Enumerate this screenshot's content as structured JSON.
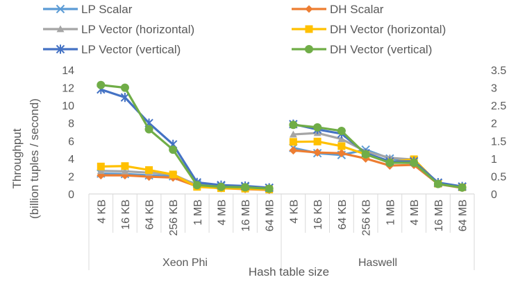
{
  "chart_data": {
    "type": "line",
    "xlabel": "Hash table size",
    "ylabel_lines": [
      "Throughput",
      "(billion tuples / second)"
    ],
    "groups": [
      {
        "label": "Xeon Phi",
        "categories": [
          "4 KB",
          "16 KB",
          "64 KB",
          "256 KB",
          "1 MB",
          "4 MB",
          "16 MB",
          "64 MB"
        ],
        "axis": "left"
      },
      {
        "label": "Haswell",
        "categories": [
          "4 KB",
          "16 KB",
          "64 KB",
          "256 KB",
          "1 MB",
          "4 MB",
          "16 MB",
          "64 MB"
        ],
        "axis": "right"
      }
    ],
    "y_left": {
      "min": 0,
      "max": 14,
      "ticks": [
        "0",
        "2",
        "4",
        "6",
        "8",
        "10",
        "12",
        "14"
      ]
    },
    "y_right": {
      "min": 0,
      "max": 3.5,
      "ticks": [
        "0",
        "0.5",
        "1",
        "1.5",
        "2",
        "2.5",
        "3",
        "3.5"
      ]
    },
    "grid": false,
    "legend_position": "top",
    "series": [
      {
        "name": "LP Scalar",
        "color": "#5B9BD5",
        "marker": "x",
        "xeon_phi": [
          2.3,
          2.25,
          2.1,
          2.0,
          1.1,
          0.9,
          0.8,
          0.7
        ],
        "haswell": [
          1.3,
          1.15,
          1.1,
          1.25,
          1.0,
          0.95,
          0.3,
          0.2
        ]
      },
      {
        "name": "DH Scalar",
        "color": "#ED7D31",
        "marker": "diamond",
        "xeon_phi": [
          2.1,
          2.1,
          1.95,
          1.85,
          0.85,
          0.65,
          0.55,
          0.45
        ],
        "haswell": [
          1.23,
          1.17,
          1.15,
          1.0,
          0.8,
          0.82,
          0.28,
          0.17
        ]
      },
      {
        "name": "LP Vector (horizontal)",
        "color": "#A5A5A5",
        "marker": "triangle",
        "xeon_phi": [
          2.6,
          2.55,
          2.4,
          2.2,
          1.0,
          0.85,
          0.75,
          0.65
        ],
        "haswell": [
          1.68,
          1.72,
          1.55,
          1.2,
          1.02,
          0.97,
          0.3,
          0.2
        ]
      },
      {
        "name": "DH Vector (horizontal)",
        "color": "#FFC000",
        "marker": "square",
        "xeon_phi": [
          3.1,
          3.15,
          2.7,
          2.2,
          0.8,
          0.65,
          0.6,
          0.5
        ],
        "haswell": [
          1.47,
          1.48,
          1.35,
          1.12,
          0.9,
          0.98,
          0.29,
          0.19
        ]
      },
      {
        "name": "LP Vector (vertical)",
        "color": "#4472C4",
        "marker": "star",
        "xeon_phi": [
          11.8,
          10.9,
          8.0,
          5.6,
          1.3,
          1.0,
          0.9,
          0.7
        ],
        "haswell": [
          1.97,
          1.82,
          1.7,
          1.15,
          0.92,
          0.92,
          0.32,
          0.21
        ]
      },
      {
        "name": "DH Vector (vertical)",
        "color": "#70AD47",
        "marker": "circle",
        "xeon_phi": [
          12.3,
          12.0,
          7.3,
          5.0,
          1.0,
          0.8,
          0.75,
          0.6
        ],
        "haswell": [
          1.95,
          1.88,
          1.78,
          1.12,
          0.88,
          0.88,
          0.28,
          0.18
        ]
      }
    ]
  }
}
